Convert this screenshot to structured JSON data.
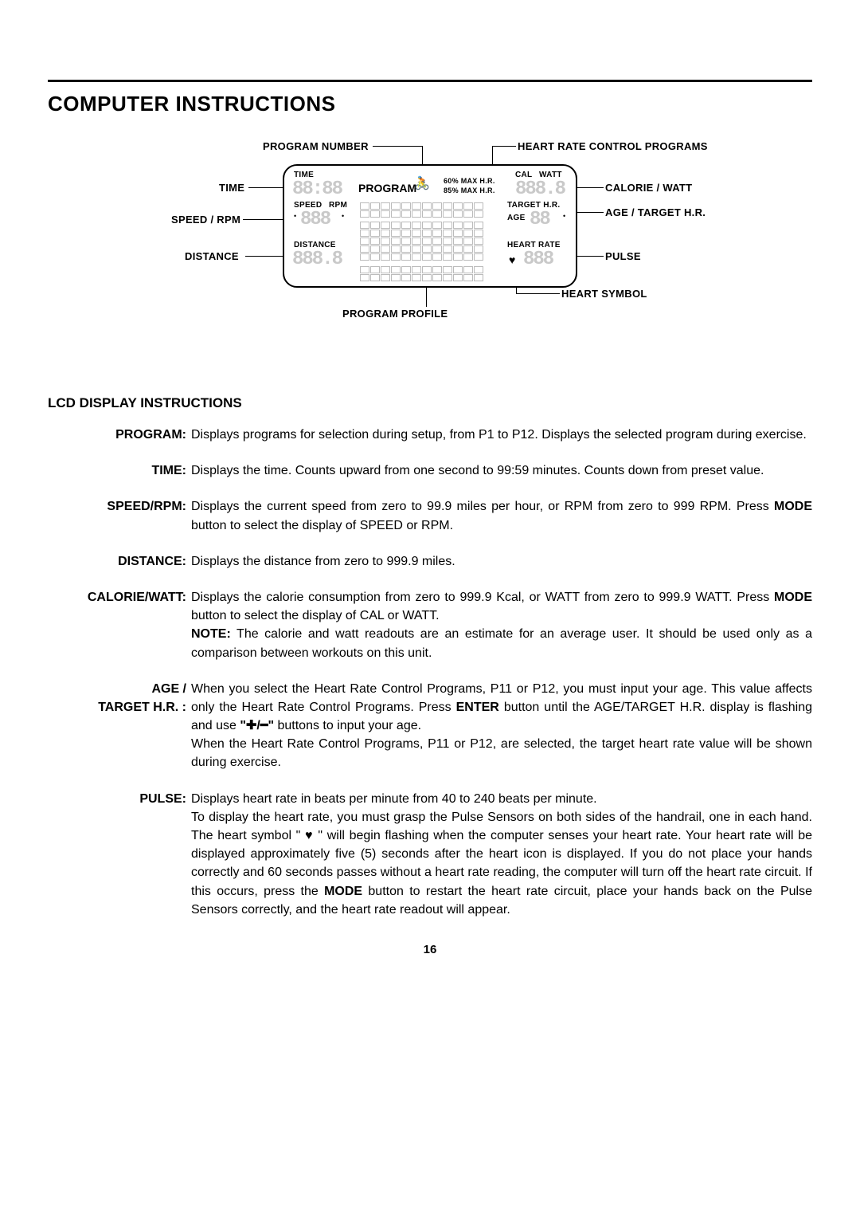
{
  "rule_color": "#000000",
  "bg_color": "#ffffff",
  "text_color": "#000000",
  "segment_placeholder_color": "#c9c9c9",
  "page_title": "COMPUTER INSTRUCTIONS",
  "page_number": "16",
  "diagram": {
    "callouts": {
      "program_number": "PROGRAM NUMBER",
      "heart_rate_control_programs": "HEART RATE CONTROL PROGRAMS",
      "time": "TIME",
      "calorie_watt": "CALORIE / WATT",
      "speed_rpm": "SPEED / RPM",
      "age_target_hr": "AGE / TARGET H.R.",
      "distance": "DISTANCE",
      "pulse": "PULSE",
      "heart_symbol": "HEART SYMBOL",
      "program_profile": "PROGRAM PROFILE"
    },
    "lcd_labels": {
      "time": "TIME",
      "program": "PROGRAM",
      "sixty_max": "60% MAX H.R.",
      "eightyfive_max": "85% MAX H.R.",
      "cal": "CAL",
      "watt": "WATT",
      "speed": "SPEED",
      "rpm": "RPM",
      "target_hr": "TARGET  H.R.",
      "age": "AGE",
      "distance": "DISTANCE",
      "heart_rate": "HEART RATE"
    },
    "segment_glyph": "8",
    "heart_glyph": "♥",
    "person_glyph": "🚴"
  },
  "section_heading": "LCD DISPLAY INSTRUCTIONS",
  "definitions": [
    {
      "term": "PROGRAM:",
      "body_html": "Displays programs for selection during setup, from P1 to P12. Displays the selected program during exercise."
    },
    {
      "term": "TIME:",
      "body_html": "Displays the time. Counts upward from one second to 99:59 minutes. Counts down from preset value."
    },
    {
      "term": "SPEED/RPM:",
      "body_html": "Displays the current speed from zero to 99.9 miles per hour, or RPM from zero to 999 RPM. Press <b>MODE</b> button to select the display of SPEED or RPM."
    },
    {
      "term": "DISTANCE:",
      "body_html": "Displays the distance from zero to 999.9 miles."
    },
    {
      "term": "CALORIE/WATT:",
      "body_html": "Displays the calorie consumption from zero to 999.9 Kcal, or WATT from zero to 999.9 WATT. Press <b>MODE</b> button to select the display of CAL or WATT.<br><b>NOTE:</b> The calorie and watt readouts are an estimate for an average user. It should be used only as a comparison between workouts on this unit."
    },
    {
      "term": "AGE /<br>TARGET H.R. :",
      "body_html": "When you select the Heart Rate Control Programs, P11 or P12, you must input your age. This value affects only the Heart Rate Control Programs. Press <b>ENTER</b> button until the AGE/TARGET H.R. display is flashing and use <b>\"✚/━\"</b> buttons to input your age.<br>When the Heart Rate Control Programs, P11 or P12, are selected, the target heart rate value will be shown during exercise."
    },
    {
      "term": "PULSE:",
      "body_html": "Displays heart rate in beats per minute from 40 to 240 beats per minute.<br>To display the heart rate, you must grasp the Pulse Sensors on both sides of the handrail, one in each hand. The heart symbol \" ♥ \" will begin flashing when the computer senses your heart rate. Your heart rate will be displayed approximately five (5) seconds after the heart icon is displayed. If you do not place your hands correctly and 60 seconds passes without a heart rate reading, the computer will turn off the heart rate circuit. If this occurs, press the <b>MODE</b> button to restart the heart rate circuit, place your hands back on the Pulse Sensors correctly, and the heart rate readout will appear."
    }
  ]
}
